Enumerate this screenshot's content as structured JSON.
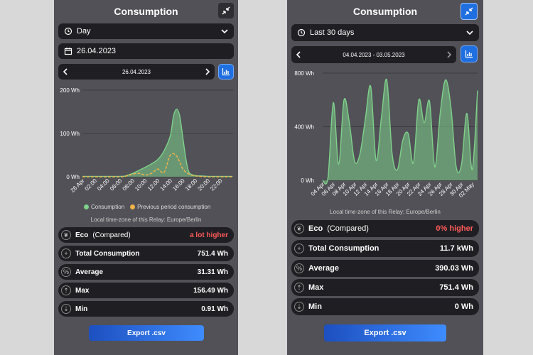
{
  "left": {
    "title": "Consumption",
    "period_select": "Day",
    "date_field": "26.04.2023",
    "date_nav": "26.04.2023",
    "chart_data": {
      "type": "area",
      "y_ticks": [
        "0 Wh",
        "100 Wh",
        "200 Wh"
      ],
      "ylim": [
        0,
        200
      ],
      "x_ticks": [
        "26 Apr",
        "02:00",
        "04:00",
        "06:00",
        "08:00",
        "10:00",
        "12:00",
        "14:00",
        "16:00",
        "18:00",
        "20:00",
        "22:00"
      ],
      "series": [
        {
          "name": "Consumption",
          "x": [
            0,
            6,
            7,
            8,
            9,
            10,
            11,
            12,
            13,
            14,
            14.5,
            15,
            15.5,
            16,
            16.5,
            17,
            18,
            19,
            20,
            22,
            23.9
          ],
          "values": [
            1,
            1,
            3,
            8,
            15,
            22,
            30,
            40,
            60,
            95,
            140,
            156,
            140,
            90,
            40,
            10,
            3,
            2,
            1,
            1,
            1
          ]
        },
        {
          "name": "Previous period consumption",
          "x": [
            0,
            6,
            7,
            8,
            9,
            10,
            11,
            12,
            13,
            14,
            15,
            16,
            17,
            18,
            20,
            23.9
          ],
          "values": [
            0,
            0,
            2,
            6,
            8,
            4,
            8,
            18,
            10,
            50,
            48,
            18,
            6,
            2,
            0,
            0
          ]
        }
      ]
    },
    "legend": [
      "Consumption",
      "Previous period consumption"
    ],
    "timezone": "Local time-zone of this Relay: Europe/Berlin",
    "stats": [
      {
        "key": "Eco",
        "sub": "(Compared)",
        "value": "a lot higher",
        "red": true
      },
      {
        "key": "Total Consumption",
        "value": "751.4 Wh"
      },
      {
        "key": "Average",
        "value": "31.31 Wh"
      },
      {
        "key": "Max",
        "value": "156.49 Wh"
      },
      {
        "key": "Min",
        "value": "0.91 Wh"
      }
    ],
    "export": "Export .csv",
    "colors": {
      "consumption": "#7fd18b",
      "previous": "#f0b44a"
    }
  },
  "right": {
    "title": "Consumption",
    "period_select": "Last 30 days",
    "date_nav": "04.04.2023 - 03.05.2023",
    "chart_data": {
      "type": "area",
      "y_ticks": [
        "0 Wh",
        "400 Wh",
        "800 Wh"
      ],
      "ylim": [
        0,
        800
      ],
      "x_ticks": [
        "04 Apr",
        "06 Apr",
        "08 Apr",
        "10 Apr",
        "12 Apr",
        "14 Apr",
        "16 Apr",
        "18 Apr",
        "20 Apr",
        "22 Apr",
        "24 Apr",
        "26 Apr",
        "28 Apr",
        "30 Apr",
        "02 May"
      ],
      "series": [
        {
          "name": "Consumption",
          "values": [
            0,
            20,
            580,
            120,
            600,
            430,
            140,
            200,
            460,
            700,
            150,
            470,
            750,
            200,
            80,
            300,
            350,
            130,
            600,
            430,
            590,
            100,
            500,
            750,
            550,
            100,
            120,
            500,
            80,
            670
          ]
        }
      ]
    },
    "timezone": "Local time-zone of this Relay: Europe/Berlin",
    "stats": [
      {
        "key": "Eco",
        "sub": "(Compared)",
        "value": "0% higher",
        "red": true
      },
      {
        "key": "Total Consumption",
        "value": "11.7 kWh"
      },
      {
        "key": "Average",
        "value": "390.03 Wh"
      },
      {
        "key": "Max",
        "value": "751.4 Wh"
      },
      {
        "key": "Min",
        "value": "0 Wh"
      }
    ],
    "export": "Export .csv"
  }
}
